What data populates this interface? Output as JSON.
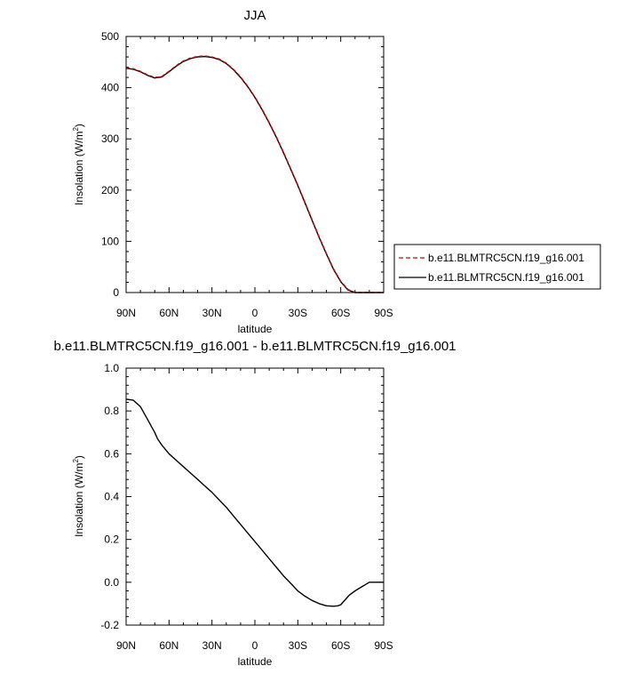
{
  "chart_data": [
    {
      "type": "line",
      "title": "JJA",
      "xlabel": "latitude",
      "ylabel": "Insolation (W/m",
      "ylabel_sup": "2",
      "ylabel_close": ")",
      "xlim": [
        90,
        -90
      ],
      "ylim": [
        0,
        500
      ],
      "xticks": [
        {
          "value": 90,
          "label": "90N"
        },
        {
          "value": 60,
          "label": "60N"
        },
        {
          "value": 30,
          "label": "30N"
        },
        {
          "value": 0,
          "label": "0"
        },
        {
          "value": -30,
          "label": "30S"
        },
        {
          "value": -60,
          "label": "60S"
        },
        {
          "value": -90,
          "label": "90S"
        }
      ],
      "yticks": [
        {
          "value": 0,
          "label": "0"
        },
        {
          "value": 100,
          "label": "100"
        },
        {
          "value": 200,
          "label": "200"
        },
        {
          "value": 300,
          "label": "300"
        },
        {
          "value": 400,
          "label": "400"
        },
        {
          "value": 500,
          "label": "500"
        }
      ],
      "legend_position": "right",
      "grid": false,
      "x": [
        90,
        85,
        80,
        75,
        70,
        65,
        60,
        55,
        50,
        45,
        40,
        35,
        30,
        25,
        20,
        15,
        10,
        5,
        0,
        -5,
        -10,
        -15,
        -20,
        -25,
        -30,
        -35,
        -40,
        -45,
        -50,
        -55,
        -60,
        -65,
        -70,
        -75,
        -80,
        -85,
        -90
      ],
      "series": [
        {
          "name": "b.e11.BLMTRC5CN.f19_g16.001",
          "color": "#cc0000",
          "dash": "dashed",
          "values": [
            439,
            437,
            432,
            425,
            420,
            422,
            432,
            443,
            452,
            458,
            461,
            462,
            460,
            456,
            448,
            436,
            421,
            403,
            382,
            358,
            332,
            304,
            274,
            242,
            210,
            176,
            142,
            108,
            76,
            46,
            22,
            6,
            0,
            0,
            0,
            0,
            0
          ]
        },
        {
          "name": "b.e11.BLMTRC5CN.f19_g16.001",
          "color": "#000000",
          "dash": "solid",
          "values": [
            438,
            436,
            431,
            424,
            419,
            421,
            431,
            442,
            451,
            457,
            460,
            461,
            459,
            455,
            447,
            435,
            420,
            402,
            381,
            357,
            331,
            303,
            273,
            241,
            209,
            175,
            141,
            107,
            75,
            45,
            21,
            5,
            0,
            0,
            0,
            0,
            0
          ]
        }
      ]
    },
    {
      "type": "line",
      "title": "b.e11.BLMTRC5CN.f19_g16.001 - b.e11.BLMTRC5CN.f19_g16.001",
      "xlabel": "latitude",
      "ylabel": "Insolation (W/m",
      "ylabel_sup": "2",
      "ylabel_close": ")",
      "xlim": [
        90,
        -90
      ],
      "ylim": [
        -0.2,
        1.0
      ],
      "xticks": [
        {
          "value": 90,
          "label": "90N"
        },
        {
          "value": 60,
          "label": "60N"
        },
        {
          "value": 30,
          "label": "30N"
        },
        {
          "value": 0,
          "label": "0"
        },
        {
          "value": -30,
          "label": "30S"
        },
        {
          "value": -60,
          "label": "60S"
        },
        {
          "value": -90,
          "label": "90S"
        }
      ],
      "yticks": [
        {
          "value": -0.2,
          "label": "-0.2"
        },
        {
          "value": 0.0,
          "label": "0.0"
        },
        {
          "value": 0.2,
          "label": "0.2"
        },
        {
          "value": 0.4,
          "label": "0.4"
        },
        {
          "value": 0.6,
          "label": "0.6"
        },
        {
          "value": 0.8,
          "label": "0.8"
        },
        {
          "value": 1.0,
          "label": "1.0"
        }
      ],
      "grid": false,
      "x": [
        90,
        85,
        80,
        75,
        70,
        68,
        65,
        60,
        55,
        50,
        45,
        40,
        35,
        30,
        25,
        20,
        15,
        10,
        5,
        0,
        -5,
        -10,
        -15,
        -20,
        -25,
        -30,
        -35,
        -40,
        -45,
        -50,
        -55,
        -58,
        -60,
        -62,
        -64,
        -66,
        -70,
        -75,
        -80,
        -85,
        -90
      ],
      "series": [
        {
          "color": "#000000",
          "dash": "solid",
          "values": [
            0.855,
            0.85,
            0.82,
            0.76,
            0.7,
            0.67,
            0.64,
            0.6,
            0.57,
            0.54,
            0.51,
            0.48,
            0.45,
            0.42,
            0.385,
            0.35,
            0.31,
            0.27,
            0.23,
            0.19,
            0.15,
            0.11,
            0.07,
            0.03,
            -0.005,
            -0.04,
            -0.065,
            -0.085,
            -0.1,
            -0.11,
            -0.112,
            -0.11,
            -0.105,
            -0.09,
            -0.075,
            -0.06,
            -0.04,
            -0.02,
            0.0,
            0.0,
            0.0
          ]
        }
      ]
    }
  ]
}
